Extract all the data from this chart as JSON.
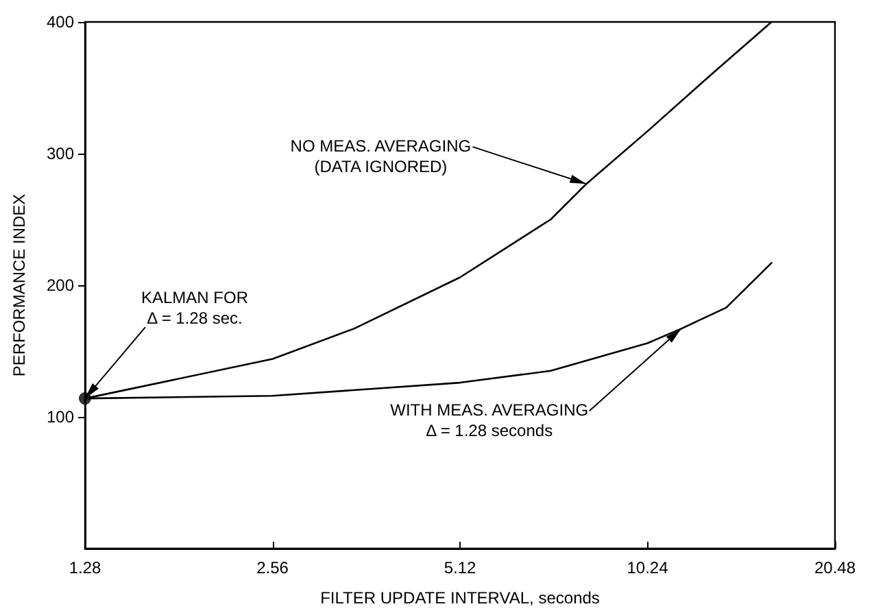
{
  "chart_data": {
    "type": "line",
    "xlabel": "FILTER UPDATE INTERVAL, seconds",
    "ylabel": "PERFORMANCE INDEX",
    "log": "x",
    "xlim": [
      1.28,
      20.48
    ],
    "xticks": [
      1.28,
      2.56,
      5.12,
      10.24,
      20.48
    ],
    "ylim": [
      0,
      400
    ],
    "yticks": [
      100,
      200,
      300,
      400
    ],
    "grid": false,
    "series": [
      {
        "color": "#000000",
        "x": [
          1.28,
          2.56,
          3.46,
          5.12,
          7.16,
          8.17,
          10.24,
          13.1,
          16.2
        ],
        "values": [
          114,
          144,
          167,
          206,
          250,
          277,
          317,
          362,
          400
        ]
      },
      {
        "color": "#000000",
        "x": [
          1.28,
          2.56,
          5.12,
          7.16,
          10.24,
          11.6,
          13.7,
          16.2
        ],
        "values": [
          114,
          116,
          126,
          135,
          156,
          167,
          183,
          217
        ]
      },
      {
        "type": "scatter",
        "color": "#000000",
        "x": [
          1.28
        ],
        "values": [
          114
        ]
      }
    ],
    "annotations": [
      {
        "text": "KALMAN FOR\nΔ = 1.28 sec.",
        "x": 1.28,
        "y": 114
      },
      {
        "text": "NO MEAS. AVERAGING\n(DATA IGNORED)",
        "x": 8.17,
        "y": 277
      },
      {
        "text": "WITH MEAS. AVERAGING\nΔ = 1.28 seconds",
        "x": 11.6,
        "y": 167
      }
    ]
  }
}
